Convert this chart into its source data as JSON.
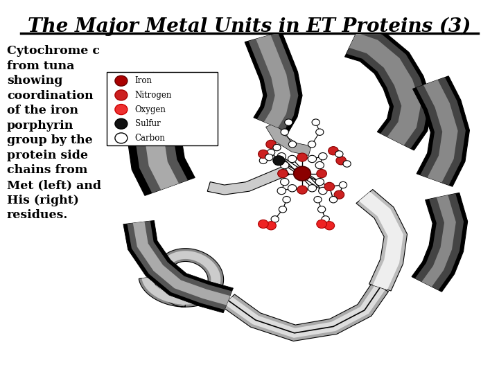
{
  "title": "The Major Metal Units in ET Proteins (3)",
  "title_fontsize": 20,
  "title_fontweight": "bold",
  "title_fontstyle": "italic",
  "body_text": "Cytochrome c\nfrom tuna\nshowing\ncoordination\nof the iron\nporphyrin\ngroup by the\nprotein side\nchains from\nMet (left) and\nHis (right)\nresidues.",
  "body_fontsize": 12.5,
  "body_fontweight": "bold",
  "legend_labels": [
    "Iron",
    "Nitrogen",
    "Oxygen",
    "Sulfur",
    "Carbon"
  ],
  "legend_facecolors": [
    "#AA0000",
    "#CC2020",
    "#EE3030",
    "#111111",
    "#FFFFFF"
  ],
  "legend_edgecolors": [
    "#660000",
    "#AA0000",
    "#CC0000",
    "#000000",
    "#000000"
  ],
  "background_color": "#FFFFFF",
  "line_color": "#000000"
}
